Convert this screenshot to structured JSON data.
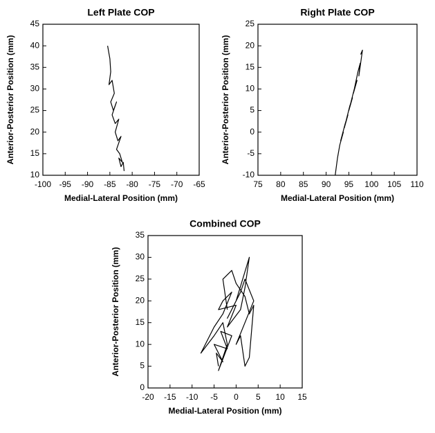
{
  "chart_data": [
    {
      "type": "line",
      "title": "Left Plate COP",
      "xlabel": "Medial-Lateral Position (mm)",
      "ylabel": "Anterior-Posterior Position (mm)",
      "x": [
        -85.5,
        -85,
        -84.8,
        -85.2,
        -84.5,
        -84,
        -84.8,
        -84.2,
        -83.5,
        -84.5,
        -83.8,
        -83,
        -83.8,
        -83.2,
        -82.5,
        -83.5,
        -82.8,
        -82.2,
        -83,
        -82.5,
        -82,
        -81.8
      ],
      "values": [
        40,
        37,
        34,
        31,
        32,
        29,
        27,
        25,
        27,
        24,
        22,
        23,
        20,
        18,
        19,
        16,
        15,
        13,
        14,
        12,
        13,
        11
      ],
      "color": "#000000",
      "xlim": [
        -100,
        -65
      ],
      "ylim": [
        10,
        45
      ],
      "xticks": [
        -100,
        -95,
        -90,
        -85,
        -80,
        -75,
        -70,
        -65
      ],
      "yticks": [
        10,
        15,
        20,
        25,
        30,
        35,
        40,
        45
      ]
    },
    {
      "type": "line",
      "title": "Right Plate COP",
      "xlabel": "Medial-Lateral Position (mm)",
      "ylabel": "Anterior-Posterior Position (mm)",
      "x": [
        92,
        92.5,
        93,
        93.8,
        93.2,
        94.2,
        94.8,
        94,
        95.2,
        95.8,
        95,
        96.2,
        96.8,
        96,
        97,
        97.5,
        97.2,
        98,
        97.6
      ],
      "values": [
        -10,
        -6,
        -3,
        0,
        -2,
        2,
        4,
        1,
        6,
        8,
        5,
        10,
        12,
        9,
        14,
        16,
        13,
        19,
        18
      ],
      "color": "#000000",
      "xlim": [
        75,
        110
      ],
      "ylim": [
        -10,
        25
      ],
      "xticks": [
        75,
        80,
        85,
        90,
        95,
        100,
        105,
        110
      ],
      "yticks": [
        -10,
        -5,
        0,
        5,
        10,
        15,
        20,
        25
      ]
    },
    {
      "type": "line",
      "title": "Combined COP",
      "xlabel": "Medial-Lateral Position (mm)",
      "ylabel": "Anterior-Posterior Position (mm)",
      "x": [
        -4,
        -4.5,
        -3,
        -5,
        -2,
        -3.5,
        -1,
        -4,
        -3,
        -2,
        -3,
        -5,
        -8,
        -5,
        -3,
        -1,
        -3,
        -4,
        0,
        -2,
        1,
        2,
        3,
        0,
        -1,
        -2,
        1,
        2,
        4,
        2,
        0,
        1,
        2,
        3,
        4,
        3,
        2,
        0,
        -1,
        -3,
        -2
      ],
      "values": [
        5,
        8,
        6,
        10,
        9,
        13,
        12,
        4,
        7,
        10,
        15,
        12,
        8,
        14,
        17,
        22,
        20,
        18,
        19,
        14,
        18,
        23,
        30,
        20,
        18,
        16,
        22,
        25,
        20,
        15,
        10,
        12,
        5,
        7,
        19,
        17,
        21,
        24,
        27,
        25,
        18
      ],
      "color": "#000000",
      "xlim": [
        -20,
        15
      ],
      "ylim": [
        0,
        35
      ],
      "xticks": [
        -20,
        -15,
        -10,
        -5,
        0,
        5,
        10,
        15
      ],
      "yticks": [
        0,
        5,
        10,
        15,
        20,
        25,
        30,
        35
      ]
    }
  ]
}
